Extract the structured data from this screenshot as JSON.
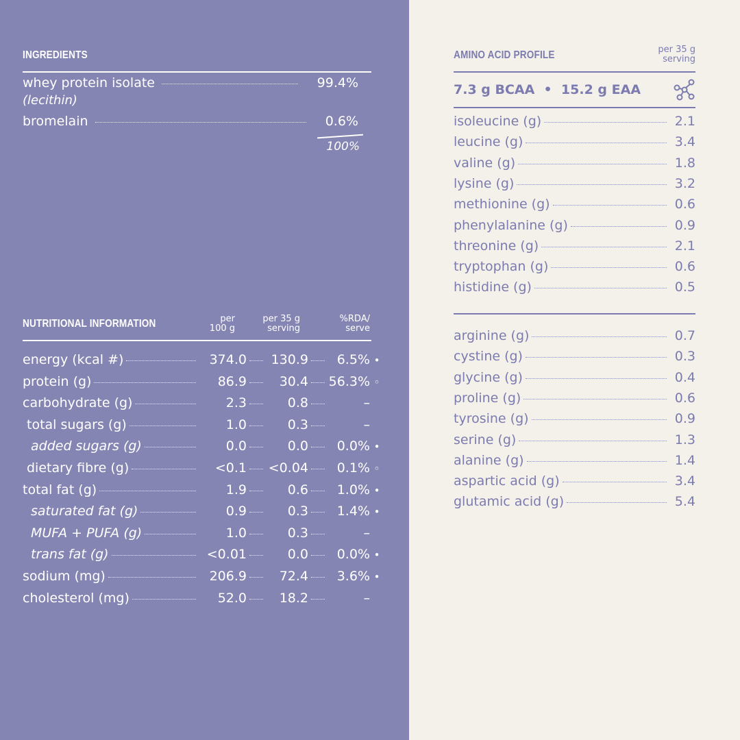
{
  "ingredients": {
    "title": "INGREDIENTS",
    "items": [
      {
        "name": "whey protein isolate",
        "sub": "(lecithin)",
        "value": "99.4%"
      },
      {
        "name": "bromelain",
        "value": "0.6%"
      }
    ],
    "total": "100%"
  },
  "nutrition": {
    "title": "NUTRITIONAL INFORMATION",
    "headers": [
      "per\n100 g",
      "per 35 g\nserving",
      "%RDA/\nserve"
    ],
    "rows": [
      [
        "energy (kcal #)",
        "374.0",
        "130.9",
        "6.5%",
        "•"
      ],
      [
        "protein (g)",
        "86.9",
        "30.4",
        "56.3%",
        "◦"
      ],
      [
        "carbohydrate (g)",
        "2.3",
        "0.8",
        "–",
        ""
      ],
      [
        "total sugars (g)",
        "1.0",
        "0.3",
        "–",
        ""
      ],
      [
        "added sugars (g)",
        "0.0",
        "0.0",
        "0.0%",
        "•"
      ],
      [
        "dietary fibre (g)",
        "<0.1",
        "<0.04",
        "0.1%",
        "◦"
      ],
      [
        "total fat (g)",
        "1.9",
        "0.6",
        "1.0%",
        "•"
      ],
      [
        "saturated fat (g)",
        "0.9",
        "0.3",
        "1.4%",
        "•"
      ],
      [
        "MUFA + PUFA (g)",
        "1.0",
        "0.3",
        "–",
        ""
      ],
      [
        "trans fat (g)",
        "<0.01",
        "0.0",
        "0.0%",
        "•"
      ],
      [
        "sodium (mg)",
        "206.9",
        "72.4",
        "3.6%",
        "•"
      ],
      [
        "cholesterol (mg)",
        "52.0",
        "18.2",
        "–",
        ""
      ]
    ]
  },
  "amino": {
    "title": "AMINO ACID PROFILE",
    "header": "per 35 g\nserving",
    "summary": "7.3 g BCAA  •  15.2 g EAA",
    "essential": [
      [
        "isoleucine (g)",
        "2.1"
      ],
      [
        "leucine (g)",
        "3.4"
      ],
      [
        "valine (g)",
        "1.8"
      ],
      [
        "lysine (g)",
        "3.2"
      ],
      [
        "methionine (g)",
        "0.6"
      ],
      [
        "phenylalanine (g)",
        "0.9"
      ],
      [
        "threonine (g)",
        "2.1"
      ],
      [
        "tryptophan (g)",
        "0.6"
      ],
      [
        "histidine (g)",
        "0.5"
      ]
    ],
    "other": [
      [
        "arginine (g)",
        "0.7"
      ],
      [
        "cystine (g)",
        "0.3"
      ],
      [
        "glycine (g)",
        "0.4"
      ],
      [
        "proline (g)",
        "0.6"
      ],
      [
        "tyrosine (g)",
        "0.9"
      ],
      [
        "serine (g)",
        "1.3"
      ],
      [
        "alanine (g)",
        "1.4"
      ],
      [
        "aspartic acid (g)",
        "3.4"
      ],
      [
        "glutamic acid (g)",
        "5.4"
      ]
    ]
  }
}
